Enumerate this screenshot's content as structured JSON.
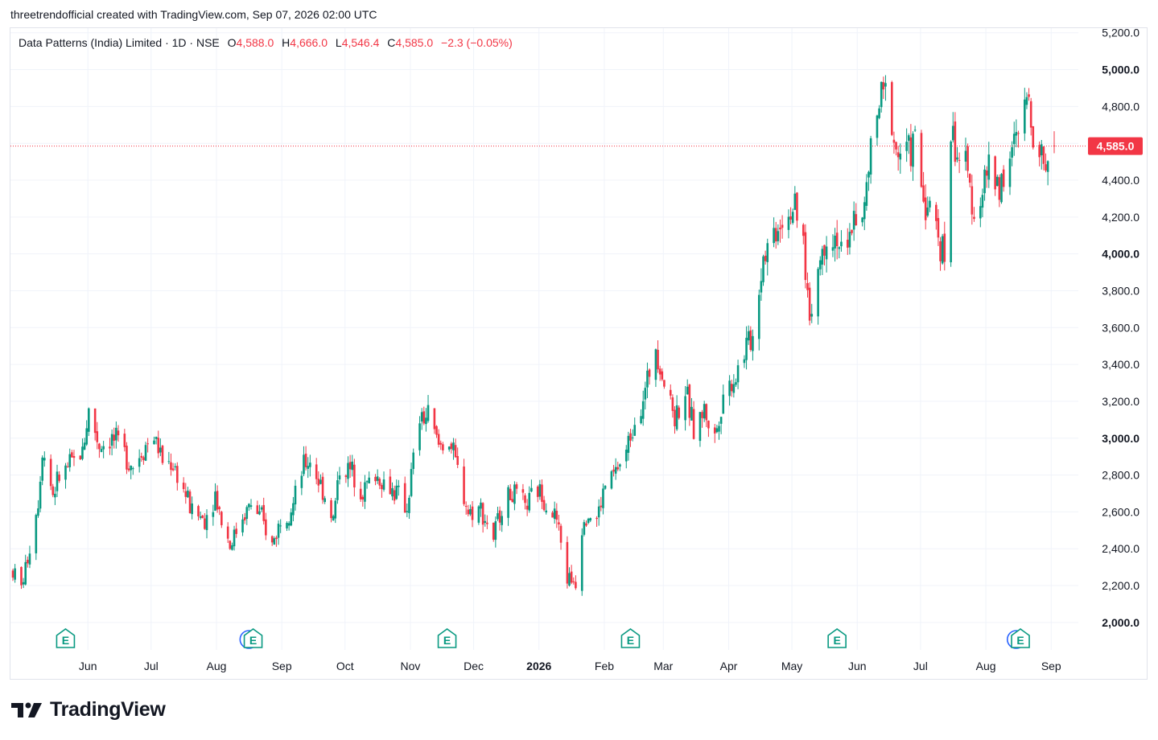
{
  "caption": "threetrendofficial created with TradingView.com, Sep 07, 2026 02:00 UTC",
  "legend": {
    "symbol": "Data Patterns (India) Limited · 1D · NSE",
    "o_label": "O",
    "o_value": "4,588.0",
    "h_label": "H",
    "h_value": "4,666.0",
    "l_label": "L",
    "l_value": "4,546.4",
    "c_label": "C",
    "c_value": "4,585.0",
    "change": "−2.3 (−0.05%)"
  },
  "brand": {
    "name": "TradingView",
    "logo_icon": "tradingview-logo-icon"
  },
  "colors": {
    "up": "#089981",
    "down": "#f23645",
    "grid": "#f0f3fa",
    "last_price": "#f23645"
  },
  "chart_data": {
    "type": "candlestick",
    "y_axis": {
      "ticks": [
        2000,
        2200,
        2400,
        2600,
        2800,
        3000,
        3200,
        3400,
        3600,
        3800,
        4000,
        4200,
        4400,
        4600,
        4800,
        5000,
        5200
      ],
      "tick_labels": [
        "2,000.0",
        "2,200.0",
        "2,400.0",
        "2,600.0",
        "2,800.0",
        "3,000.0",
        "3,200.0",
        "3,400.0",
        "3,600.0",
        "3,800.0",
        "4,000.0",
        "4,200.0",
        "4,400.0",
        "4,600.0",
        "4,800.0",
        "5,000.0",
        "5,200.0"
      ],
      "bold_ticks": [
        "2,000.0",
        "3,000.0",
        "4,000.0",
        "5,000.0"
      ],
      "range": [
        1995,
        5225
      ]
    },
    "x_axis": {
      "labels": [
        "Jun",
        "Jul",
        "Aug",
        "Sep",
        "Oct",
        "Nov",
        "Dec",
        "2026",
        "Feb",
        "Mar",
        "Apr",
        "May",
        "Jun",
        "Jul",
        "Aug",
        "Sep"
      ],
      "bold_labels": [
        "2026"
      ],
      "range": [
        "2025-05-01",
        "2026-09-07"
      ]
    },
    "last_price": {
      "value": 4585.0,
      "label": "4,585.0"
    },
    "trend_path": [
      [
        "2025-05-01",
        2280
      ],
      [
        "2025-05-05",
        2190
      ],
      [
        "2025-05-08",
        2350
      ],
      [
        "2025-05-13",
        2660
      ],
      [
        "2025-05-15",
        2950
      ],
      [
        "2025-05-20",
        2700
      ],
      [
        "2025-05-23",
        2790
      ],
      [
        "2025-05-28",
        2850
      ],
      [
        "2025-06-03",
        2930
      ],
      [
        "2025-06-06",
        3150
      ],
      [
        "2025-06-11",
        2960
      ],
      [
        "2025-06-17",
        3000
      ],
      [
        "2025-06-23",
        2920
      ],
      [
        "2025-06-27",
        2850
      ],
      [
        "2025-07-02",
        2950
      ],
      [
        "2025-07-07",
        3010
      ],
      [
        "2025-07-11",
        2880
      ],
      [
        "2025-07-16",
        2860
      ],
      [
        "2025-07-21",
        2720
      ],
      [
        "2025-07-25",
        2600
      ],
      [
        "2025-07-31",
        2560
      ],
      [
        "2025-08-05",
        2700
      ],
      [
        "2025-08-08",
        2560
      ],
      [
        "2025-08-12",
        2420
      ],
      [
        "2025-08-18",
        2580
      ],
      [
        "2025-08-22",
        2640
      ],
      [
        "2025-08-27",
        2560
      ],
      [
        "2025-09-01",
        2420
      ],
      [
        "2025-09-05",
        2560
      ],
      [
        "2025-09-11",
        2640
      ],
      [
        "2025-09-16",
        2850
      ],
      [
        "2025-09-19",
        2880
      ],
      [
        "2025-09-25",
        2720
      ],
      [
        "2025-09-30",
        2560
      ],
      [
        "2025-10-03",
        2840
      ],
      [
        "2025-10-09",
        2820
      ],
      [
        "2025-10-14",
        2720
      ],
      [
        "2025-10-20",
        2800
      ],
      [
        "2025-10-24",
        2760
      ],
      [
        "2025-10-30",
        2700
      ],
      [
        "2025-11-04",
        2620
      ],
      [
        "2025-11-06",
        2800
      ],
      [
        "2025-11-10",
        3100
      ],
      [
        "2025-11-14",
        3120
      ],
      [
        "2025-11-19",
        2960
      ],
      [
        "2025-11-24",
        2990
      ],
      [
        "2025-11-28",
        2820
      ],
      [
        "2025-12-03",
        2600
      ],
      [
        "2025-12-09",
        2620
      ],
      [
        "2025-12-15",
        2460
      ],
      [
        "2025-12-19",
        2640
      ],
      [
        "2025-12-24",
        2700
      ],
      [
        "2025-12-30",
        2620
      ],
      [
        "2026-01-05",
        2720
      ],
      [
        "2026-01-09",
        2660
      ],
      [
        "2026-01-14",
        2560
      ],
      [
        "2026-01-19",
        2240
      ],
      [
        "2026-01-23",
        2230
      ],
      [
        "2026-01-27",
        2600
      ],
      [
        "2026-02-02",
        2560
      ],
      [
        "2026-02-06",
        2740
      ],
      [
        "2026-02-11",
        2820
      ],
      [
        "2026-02-16",
        2920
      ],
      [
        "2026-02-20",
        3120
      ],
      [
        "2026-02-25",
        3250
      ],
      [
        "2026-03-02",
        3520
      ],
      [
        "2026-03-06",
        3300
      ],
      [
        "2026-03-11",
        3120
      ],
      [
        "2026-03-16",
        3250
      ],
      [
        "2026-03-20",
        3050
      ],
      [
        "2026-03-25",
        3150
      ],
      [
        "2026-03-30",
        3000
      ],
      [
        "2026-04-03",
        3250
      ],
      [
        "2026-04-08",
        3320
      ],
      [
        "2026-04-14",
        3500
      ],
      [
        "2026-04-17",
        3550
      ],
      [
        "2026-04-22",
        4000
      ],
      [
        "2026-04-27",
        4120
      ],
      [
        "2026-05-01",
        4200
      ],
      [
        "2026-05-06",
        4250
      ],
      [
        "2026-05-11",
        4050
      ],
      [
        "2026-05-14",
        3650
      ],
      [
        "2026-05-18",
        3920
      ],
      [
        "2026-05-22",
        4100
      ],
      [
        "2026-05-27",
        4100
      ],
      [
        "2026-05-31",
        3900
      ],
      [
        "2026-06-04",
        4250
      ],
      [
        "2026-06-08",
        4150
      ],
      [
        "2026-06-12",
        4550
      ],
      [
        "2026-06-16",
        4800
      ],
      [
        "2026-06-20",
        4900
      ],
      [
        "2026-06-24",
        4550
      ],
      [
        "2026-06-29",
        4550
      ],
      [
        "2026-07-03",
        4600
      ],
      [
        "2026-07-07",
        4300
      ],
      [
        "2026-07-13",
        4150
      ],
      [
        "2026-07-18",
        3950
      ],
      [
        "2026-07-20",
        4650
      ],
      [
        "2026-07-23",
        4550
      ],
      [
        "2026-07-27",
        4450
      ],
      [
        "2026-08-01",
        4200
      ],
      [
        "2026-08-06",
        4450
      ],
      [
        "2026-08-12",
        4380
      ],
      [
        "2026-08-17",
        4500
      ],
      [
        "2026-08-21",
        4650
      ],
      [
        "2026-08-25",
        4850
      ],
      [
        "2026-08-29",
        4650
      ],
      [
        "2026-09-02",
        4500
      ],
      [
        "2026-09-07",
        4585
      ]
    ],
    "last_candle": {
      "open": 4588.0,
      "high": 4666.0,
      "low": 4546.4,
      "close": 4585.0
    },
    "events": [
      {
        "date": "2025-05-13",
        "label": "E"
      },
      {
        "date": "2025-08-08",
        "label": "C"
      },
      {
        "date": "2025-08-10",
        "label": "E"
      },
      {
        "date": "2025-11-10",
        "label": "E"
      },
      {
        "date": "2026-02-05",
        "label": "E"
      },
      {
        "date": "2026-05-14",
        "label": "E"
      },
      {
        "date": "2026-08-07",
        "label": "C"
      },
      {
        "date": "2026-08-09",
        "label": "E"
      }
    ]
  }
}
